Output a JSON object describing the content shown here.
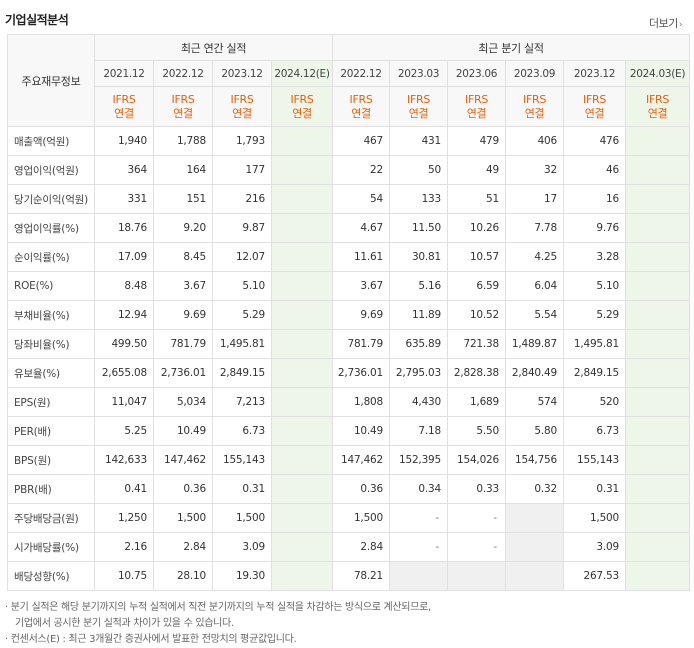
{
  "title": "기업실적분석",
  "more_label": "더보기",
  "row_header_label": "주요재무정보",
  "groups": {
    "annual": "최근 연간 실적",
    "quarterly": "최근 분기 실적"
  },
  "periods": [
    "2021.12",
    "2022.12",
    "2023.12",
    "2024.12(E)",
    "2022.12",
    "2023.03",
    "2023.06",
    "2023.09",
    "2023.12",
    "2024.03(E)"
  ],
  "standard": {
    "line1": "IFRS",
    "line2": "연결"
  },
  "estimate_color": "#eef6ea",
  "accent_color": "#e8600a",
  "rows": [
    {
      "label": "매출액(억원)",
      "values": [
        "1,940",
        "1,788",
        "1,793",
        "",
        "467",
        "431",
        "479",
        "406",
        "476",
        ""
      ]
    },
    {
      "label": "영업이익(억원)",
      "values": [
        "364",
        "164",
        "177",
        "",
        "22",
        "50",
        "49",
        "32",
        "46",
        ""
      ]
    },
    {
      "label": "당기순이익(억원)",
      "values": [
        "331",
        "151",
        "216",
        "",
        "54",
        "133",
        "51",
        "17",
        "16",
        ""
      ]
    },
    {
      "label": "영업이익률(%)",
      "values": [
        "18.76",
        "9.20",
        "9.87",
        "",
        "4.67",
        "11.50",
        "10.26",
        "7.78",
        "9.76",
        ""
      ]
    },
    {
      "label": "순이익률(%)",
      "values": [
        "17.09",
        "8.45",
        "12.07",
        "",
        "11.61",
        "30.81",
        "10.57",
        "4.25",
        "3.28",
        ""
      ]
    },
    {
      "label": "ROE(%)",
      "values": [
        "8.48",
        "3.67",
        "5.10",
        "",
        "3.67",
        "5.16",
        "6.59",
        "6.04",
        "5.10",
        ""
      ]
    },
    {
      "label": "부채비율(%)",
      "values": [
        "12.94",
        "9.69",
        "5.29",
        "",
        "9.69",
        "11.89",
        "10.52",
        "5.54",
        "5.29",
        ""
      ]
    },
    {
      "label": "당좌비율(%)",
      "values": [
        "499.50",
        "781.79",
        "1,495.81",
        "",
        "781.79",
        "635.89",
        "721.38",
        "1,489.87",
        "1,495.81",
        ""
      ]
    },
    {
      "label": "유보율(%)",
      "values": [
        "2,655.08",
        "2,736.01",
        "2,849.15",
        "",
        "2,736.01",
        "2,795.03",
        "2,828.38",
        "2,840.49",
        "2,849.15",
        ""
      ]
    },
    {
      "label": "EPS(원)",
      "values": [
        "11,047",
        "5,034",
        "7,213",
        "",
        "1,808",
        "4,430",
        "1,689",
        "574",
        "520",
        ""
      ]
    },
    {
      "label": "PER(배)",
      "values": [
        "5.25",
        "10.49",
        "6.73",
        "",
        "10.49",
        "7.18",
        "5.50",
        "5.80",
        "6.73",
        ""
      ]
    },
    {
      "label": "BPS(원)",
      "values": [
        "142,633",
        "147,462",
        "155,143",
        "",
        "147,462",
        "152,395",
        "154,026",
        "154,756",
        "155,143",
        ""
      ]
    },
    {
      "label": "PBR(배)",
      "values": [
        "0.41",
        "0.36",
        "0.31",
        "",
        "0.36",
        "0.34",
        "0.33",
        "0.32",
        "0.31",
        ""
      ]
    },
    {
      "label": "주당배당금(원)",
      "values": [
        "1,250",
        "1,500",
        "1,500",
        "",
        "1,500",
        "-",
        "-",
        "",
        "1,500",
        ""
      ]
    },
    {
      "label": "시가배당률(%)",
      "values": [
        "2.16",
        "2.84",
        "3.09",
        "",
        "2.84",
        "-",
        "-",
        "",
        "3.09",
        ""
      ]
    },
    {
      "label": "배당성향(%)",
      "values": [
        "10.75",
        "28.10",
        "19.30",
        "",
        "78.21",
        "",
        "",
        "",
        "267.53",
        ""
      ]
    }
  ],
  "notes": {
    "line1": "분기 실적은 해당 분기까지의 누적 실적에서 직전 분기까지의 누적 실적을 차감하는 방식으로 계산되므로,",
    "line2": "기업에서 공시한 분기 실적과 차이가 있을 수 있습니다.",
    "line3": "컨센서스(E) : 최근 3개월간 증권사에서 발표한 전망치의 평균값입니다."
  }
}
